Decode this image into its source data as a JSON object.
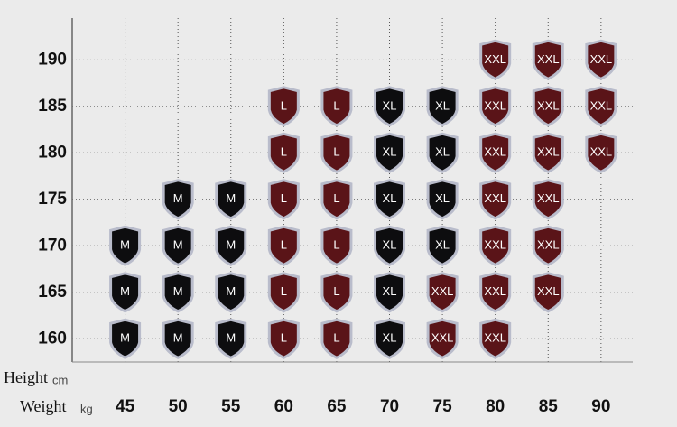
{
  "chart_data": {
    "type": "scatter",
    "y_title": "Height",
    "y_unit": "cm",
    "x_title": "Weight",
    "x_unit": "kg",
    "xlim": [
      40,
      93
    ],
    "ylim": [
      157.5,
      194.5
    ],
    "xticks": [
      45,
      50,
      55,
      60,
      65,
      70,
      75,
      80,
      85,
      90
    ],
    "yticks": [
      160,
      165,
      170,
      175,
      180,
      185,
      190
    ],
    "grid": true,
    "series": [
      {
        "name": "M",
        "color": "#0d0d0f",
        "x": [
          45,
          50,
          55,
          45,
          50,
          55,
          45,
          50,
          55,
          50,
          55
        ],
        "y": [
          160,
          160,
          160,
          165,
          165,
          165,
          170,
          170,
          170,
          175,
          175
        ]
      },
      {
        "name": "L",
        "color": "#5a1418",
        "x": [
          60,
          65,
          60,
          65,
          60,
          65,
          60,
          65,
          60,
          65,
          60,
          65
        ],
        "y": [
          160,
          160,
          165,
          165,
          170,
          170,
          175,
          175,
          180,
          180,
          185,
          185
        ]
      },
      {
        "name": "XL",
        "color": "#0d0d0f",
        "x": [
          70,
          70,
          70,
          75,
          70,
          75,
          70,
          75,
          70,
          75
        ],
        "y": [
          160,
          165,
          170,
          170,
          175,
          175,
          180,
          180,
          185,
          185
        ]
      },
      {
        "name": "XXL",
        "color": "#5a1418",
        "x": [
          75,
          80,
          75,
          80,
          85,
          80,
          85,
          80,
          85,
          80,
          85,
          90,
          80,
          85,
          90,
          80,
          85,
          90
        ],
        "y": [
          160,
          160,
          165,
          165,
          165,
          170,
          170,
          175,
          175,
          180,
          180,
          180,
          185,
          185,
          185,
          190,
          190,
          190
        ]
      }
    ]
  }
}
